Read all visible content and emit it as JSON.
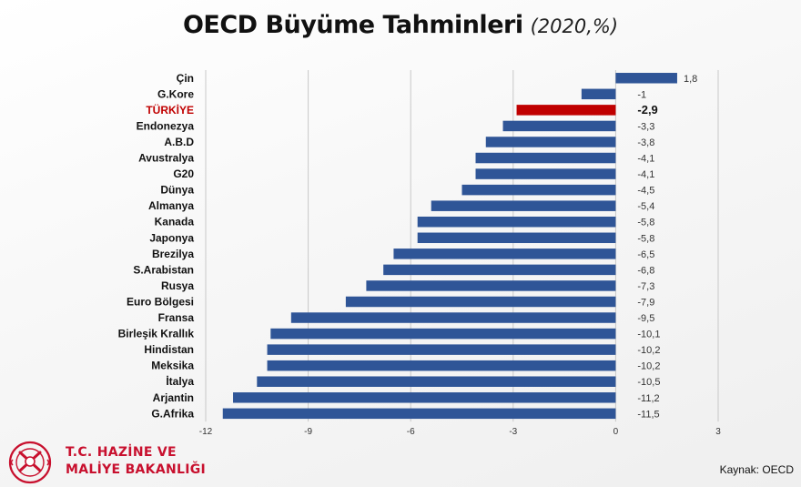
{
  "header": {
    "title": "OECD Büyüme Tahminleri",
    "subtitle": "(2020,%)"
  },
  "footer": {
    "org_line1": "T.C. HAZİNE VE",
    "org_line2": "MALİYE BAKANLIĞI",
    "source": "Kaynak: OECD"
  },
  "colors": {
    "bar": "#2f5597",
    "highlight": "#c00000",
    "highlight_label": "#c00000",
    "grid": "#c8c8c8",
    "brand": "#c8102e"
  },
  "chart_data": {
    "type": "bar",
    "orientation": "horizontal",
    "title": "OECD Büyüme Tahminleri",
    "subtitle": "(2020,%)",
    "categories": [
      "Çin",
      "G.Kore",
      "TÜRKİYE",
      "Endonezya",
      "A.B.D",
      "Avustralya",
      "G20",
      "Dünya",
      "Almanya",
      "Kanada",
      "Japonya",
      "Brezilya",
      "S.Arabistan",
      "Rusya",
      "Euro Bölgesi",
      "Fransa",
      "Birleşik Krallık",
      "Hindistan",
      "Meksika",
      "İtalya",
      "Arjantin",
      "G.Afrika"
    ],
    "values": [
      1.8,
      -1,
      -2.9,
      -3.3,
      -3.8,
      -4.1,
      -4.1,
      -4.5,
      -5.4,
      -5.8,
      -5.8,
      -6.5,
      -6.8,
      -7.3,
      -7.9,
      -9.5,
      -10.1,
      -10.2,
      -10.2,
      -10.5,
      -11.2,
      -11.5
    ],
    "value_labels": [
      "1,8",
      "-1",
      "-2,9",
      "-3,3",
      "-3,8",
      "-4,1",
      "-4,1",
      "-4,5",
      "-5,4",
      "-5,8",
      "-5,8",
      "-6,5",
      "-6,8",
      "-7,3",
      "-7,9",
      "-9,5",
      "-10,1",
      "-10,2",
      "-10,2",
      "-10,5",
      "-11,2",
      "-11,5"
    ],
    "highlight": "TÜRKİYE",
    "xlim": [
      -12,
      3
    ],
    "xticks": [
      -12,
      -9,
      -6,
      -3,
      0,
      3
    ],
    "grid": true,
    "legend": "none"
  }
}
